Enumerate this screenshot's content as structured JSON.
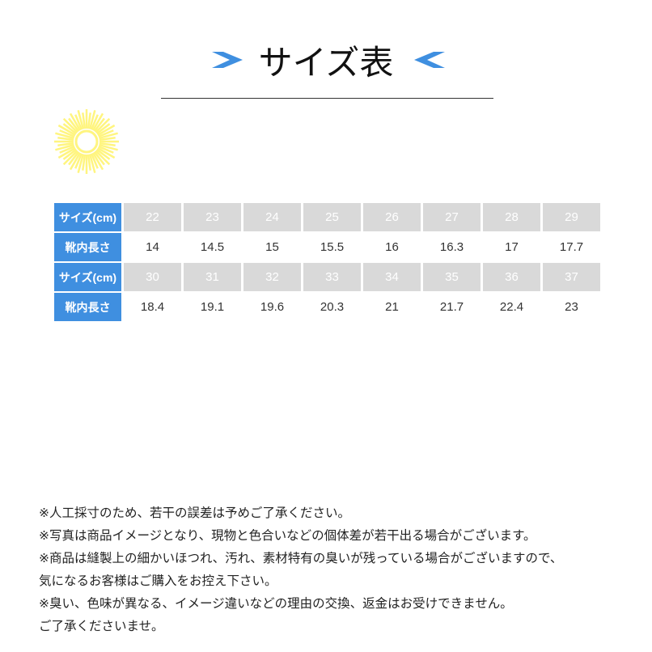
{
  "title": "サイズ表",
  "colors": {
    "accent": "#3f8fe0",
    "size_cell": "#d9d9d9",
    "sun": "#fff580"
  },
  "icons": {
    "left": "chevron-right-icon",
    "right": "chevron-left-icon",
    "deco": "sunburst-icon"
  },
  "table": {
    "rows": [
      {
        "type": "size",
        "label": "サイズ(cm)",
        "values": [
          "22",
          "23",
          "24",
          "25",
          "26",
          "27",
          "28",
          "29"
        ]
      },
      {
        "type": "len",
        "label": "靴内長さ",
        "values": [
          "14",
          "14.5",
          "15",
          "15.5",
          "16",
          "16.3",
          "17",
          "17.7"
        ]
      },
      {
        "type": "size",
        "label": "サイズ(cm)",
        "values": [
          "30",
          "31",
          "32",
          "33",
          "34",
          "35",
          "36",
          "37"
        ]
      },
      {
        "type": "len",
        "label": "靴内長さ",
        "values": [
          "18.4",
          "19.1",
          "19.6",
          "20.3",
          "21",
          "21.7",
          "22.4",
          "23"
        ]
      }
    ]
  },
  "notes": [
    "※人工採寸のため、若干の誤差は予めご了承ください。",
    "※写真は商品イメージとなり、現物と色合いなどの個体差が若干出る場合がございます。",
    "※商品は縫製上の細かいほつれ、汚れ、素材特有の臭いが残っている場合がございますので、",
    "気になるお客様はご購入をお控え下さい。",
    "※臭い、色味が異なる、イメージ違いなどの理由の交換、返金はお受けできません。",
    "ご了承くださいませ。"
  ]
}
